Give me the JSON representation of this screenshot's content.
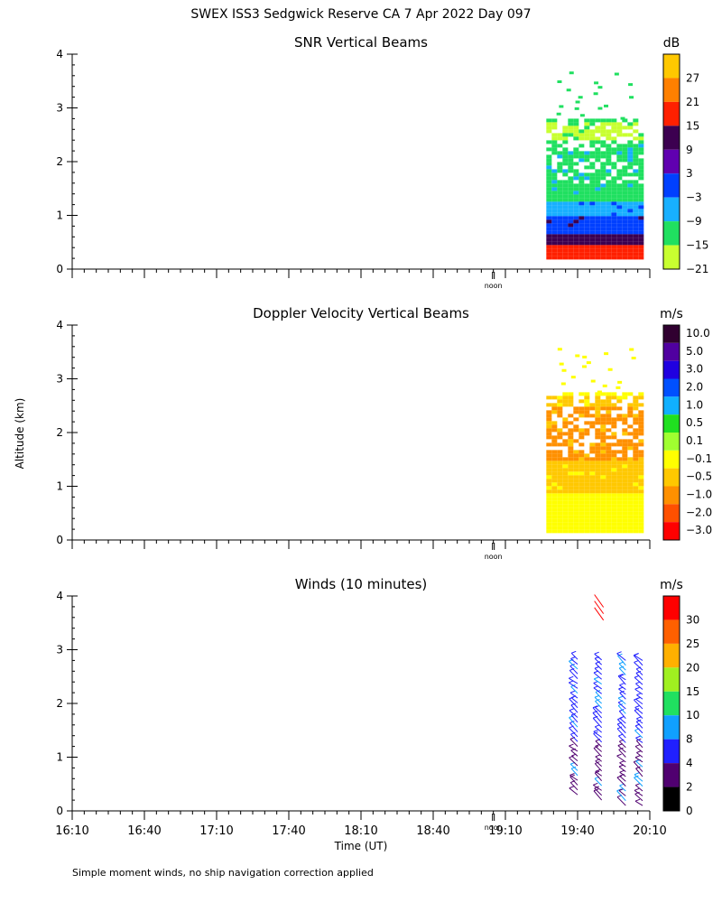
{
  "header": {
    "title": "SWEX ISS3 Sedgwick Reserve CA   7 Apr 2022 Day 097",
    "ylabel": "Altitude (km)",
    "xlabel": "Time (UT)",
    "footnote": "Simple moment winds, no ship navigation correction applied",
    "noon_label": "noon"
  },
  "chart_data": [
    {
      "type": "heatmap",
      "title": "SNR Vertical Beams",
      "unit": "dB",
      "ylim": [
        0,
        4
      ],
      "yticks": [
        "0",
        "1",
        "2",
        "3",
        "4"
      ],
      "colorbar": {
        "labels": [
          "27",
          "21",
          "15",
          "9",
          "3",
          "−3",
          "−9",
          "−15",
          "−21"
        ],
        "colors": [
          "#ffc800",
          "#ff8000",
          "#ff2000",
          "#3c0050",
          "#6000b0",
          "#0040ff",
          "#18b0ff",
          "#20e060",
          "#c8ff30"
        ]
      },
      "data_window": {
        "start": "19:27",
        "end": "20:07"
      },
      "profile": [
        {
          "alt": 0.2,
          "color": "#ff2000"
        },
        {
          "alt": 0.45,
          "color": "#3c0050"
        },
        {
          "alt": 0.7,
          "color": "#0040ff"
        },
        {
          "alt": 1.0,
          "color": "#18b0ff"
        },
        {
          "alt": 1.3,
          "color": "#20e060"
        },
        {
          "alt": 2.4,
          "color": "#c8ff30"
        },
        {
          "alt": 2.8,
          "color": "#20e060"
        }
      ]
    },
    {
      "type": "heatmap",
      "title": "Doppler Velocity Vertical Beams",
      "unit": "m/s",
      "ylim": [
        0,
        4
      ],
      "yticks": [
        "0",
        "1",
        "2",
        "3",
        "4"
      ],
      "colorbar": {
        "labels": [
          "10.0",
          "5.0",
          "3.0",
          "2.0",
          "1.0",
          "0.5",
          "0.1",
          "−0.1",
          "−0.5",
          "−1.0",
          "−2.0",
          "−3.0"
        ],
        "colors": [
          "#300030",
          "#5000a0",
          "#2000e0",
          "#0050ff",
          "#10b0ff",
          "#20e020",
          "#a0ff30",
          "#ffff00",
          "#ffc800",
          "#ff9000",
          "#ff5000",
          "#ff0000"
        ]
      },
      "data_window": {
        "start": "19:27",
        "end": "20:07"
      },
      "profile": [
        {
          "alt": 0.15,
          "color": "#ffff00"
        },
        {
          "alt": 0.9,
          "color": "#ffc800"
        },
        {
          "alt": 1.5,
          "color": "#ff9000"
        },
        {
          "alt": 2.5,
          "color": "#ffc800"
        },
        {
          "alt": 2.75,
          "color": "#ffff00"
        }
      ]
    },
    {
      "type": "wind-barbs",
      "title": "Winds (10 minutes)",
      "unit": "m/s",
      "ylim": [
        0,
        4
      ],
      "yticks": [
        "0",
        "1",
        "2",
        "3",
        "4"
      ],
      "colorbar": {
        "labels": [
          "30",
          "25",
          "20",
          "15",
          "10",
          "8",
          "4",
          "2",
          "0"
        ],
        "colors": [
          "#ff0000",
          "#ff6000",
          "#ffb000",
          "#a0f020",
          "#20e060",
          "#10a0ff",
          "#2020ff",
          "#500070",
          "#000000"
        ]
      },
      "profiles": [
        {
          "time": "19:40",
          "bottom": 0.3,
          "top": 2.85
        },
        {
          "time": "19:50",
          "bottom": 0.2,
          "top": 2.85
        },
        {
          "time": "20:00",
          "bottom": 0.1,
          "top": 2.85
        },
        {
          "time": "20:07",
          "bottom": 0.1,
          "top": 2.85
        }
      ]
    }
  ],
  "x_axis": {
    "start": "16:10",
    "end": "20:10",
    "ticks": [
      "16:10",
      "16:40",
      "17:10",
      "17:40",
      "18:10",
      "18:40",
      "19:10",
      "19:40",
      "20:10"
    ],
    "noon": "19:05"
  }
}
